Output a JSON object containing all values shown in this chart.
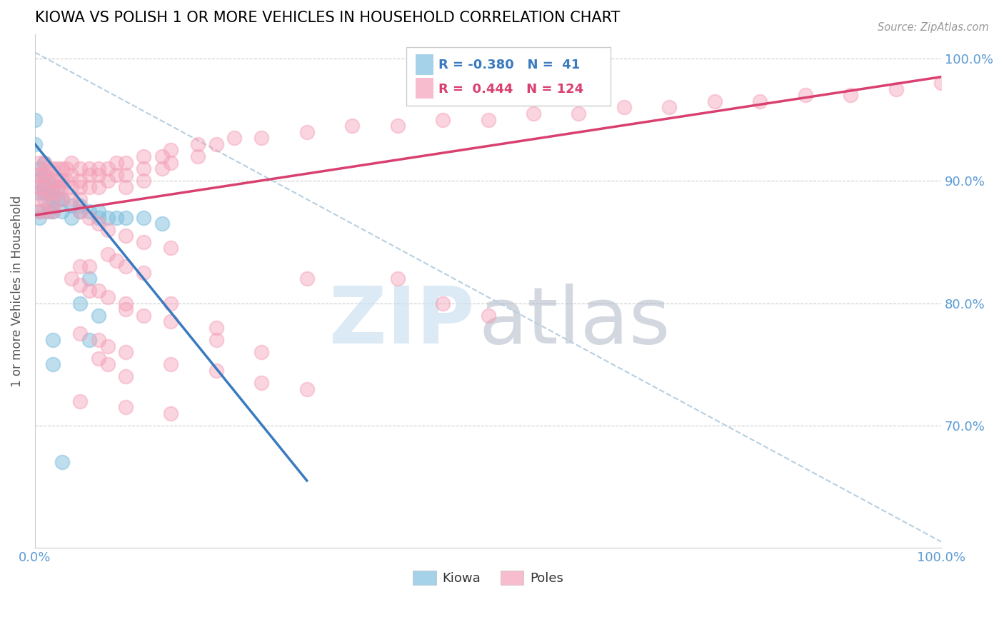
{
  "title": "KIOWA VS POLISH 1 OR MORE VEHICLES IN HOUSEHOLD CORRELATION CHART",
  "source": "Source: ZipAtlas.com",
  "ylabel": "1 or more Vehicles in Household",
  "legend_kiowa": "Kiowa",
  "legend_poles": "Poles",
  "kiowa_R": -0.38,
  "kiowa_N": 41,
  "poles_R": 0.444,
  "poles_N": 124,
  "kiowa_color": "#7fbfdf",
  "poles_color": "#f4a0b8",
  "kiowa_line_color": "#3a7abf",
  "poles_line_color": "#d94070",
  "dashed_line_color": "#b8cfe0",
  "xlim": [
    0.0,
    1.0
  ],
  "ylim": [
    0.6,
    1.02
  ],
  "yticks": [
    0.7,
    0.8,
    0.9,
    1.0
  ],
  "ytick_labels": [
    "70.0%",
    "80.0%",
    "90.0%",
    "100.0%"
  ],
  "xtick_labels_left": "0.0%",
  "xtick_labels_right": "100.0%",
  "kiowa_scatter": [
    [
      0.0,
      0.93
    ],
    [
      0.0,
      0.9
    ],
    [
      0.0,
      0.95
    ],
    [
      0.005,
      0.91
    ],
    [
      0.005,
      0.89
    ],
    [
      0.005,
      0.875
    ],
    [
      0.005,
      0.87
    ],
    [
      0.01,
      0.915
    ],
    [
      0.01,
      0.905
    ],
    [
      0.01,
      0.895
    ],
    [
      0.01,
      0.89
    ],
    [
      0.015,
      0.9
    ],
    [
      0.015,
      0.89
    ],
    [
      0.015,
      0.88
    ],
    [
      0.015,
      0.875
    ],
    [
      0.02,
      0.895
    ],
    [
      0.02,
      0.885
    ],
    [
      0.02,
      0.875
    ],
    [
      0.025,
      0.895
    ],
    [
      0.025,
      0.885
    ],
    [
      0.03,
      0.885
    ],
    [
      0.03,
      0.875
    ],
    [
      0.04,
      0.88
    ],
    [
      0.04,
      0.87
    ],
    [
      0.05,
      0.88
    ],
    [
      0.05,
      0.875
    ],
    [
      0.06,
      0.875
    ],
    [
      0.07,
      0.875
    ],
    [
      0.07,
      0.87
    ],
    [
      0.08,
      0.87
    ],
    [
      0.09,
      0.87
    ],
    [
      0.1,
      0.87
    ],
    [
      0.12,
      0.87
    ],
    [
      0.14,
      0.865
    ],
    [
      0.05,
      0.8
    ],
    [
      0.06,
      0.82
    ],
    [
      0.07,
      0.79
    ],
    [
      0.06,
      0.77
    ],
    [
      0.02,
      0.77
    ],
    [
      0.02,
      0.75
    ],
    [
      0.03,
      0.67
    ]
  ],
  "poles_scatter": [
    [
      0.0,
      0.905
    ],
    [
      0.0,
      0.895
    ],
    [
      0.005,
      0.915
    ],
    [
      0.005,
      0.905
    ],
    [
      0.005,
      0.895
    ],
    [
      0.005,
      0.885
    ],
    [
      0.005,
      0.875
    ],
    [
      0.01,
      0.915
    ],
    [
      0.01,
      0.905
    ],
    [
      0.01,
      0.895
    ],
    [
      0.01,
      0.885
    ],
    [
      0.01,
      0.875
    ],
    [
      0.015,
      0.91
    ],
    [
      0.015,
      0.9
    ],
    [
      0.015,
      0.89
    ],
    [
      0.02,
      0.91
    ],
    [
      0.02,
      0.9
    ],
    [
      0.02,
      0.89
    ],
    [
      0.02,
      0.88
    ],
    [
      0.02,
      0.875
    ],
    [
      0.025,
      0.91
    ],
    [
      0.025,
      0.9
    ],
    [
      0.025,
      0.89
    ],
    [
      0.03,
      0.91
    ],
    [
      0.03,
      0.9
    ],
    [
      0.03,
      0.895
    ],
    [
      0.03,
      0.885
    ],
    [
      0.035,
      0.91
    ],
    [
      0.035,
      0.9
    ],
    [
      0.04,
      0.915
    ],
    [
      0.04,
      0.905
    ],
    [
      0.04,
      0.895
    ],
    [
      0.04,
      0.885
    ],
    [
      0.05,
      0.91
    ],
    [
      0.05,
      0.9
    ],
    [
      0.05,
      0.895
    ],
    [
      0.05,
      0.885
    ],
    [
      0.06,
      0.91
    ],
    [
      0.06,
      0.905
    ],
    [
      0.06,
      0.895
    ],
    [
      0.07,
      0.91
    ],
    [
      0.07,
      0.905
    ],
    [
      0.07,
      0.895
    ],
    [
      0.08,
      0.91
    ],
    [
      0.08,
      0.9
    ],
    [
      0.09,
      0.915
    ],
    [
      0.09,
      0.905
    ],
    [
      0.1,
      0.915
    ],
    [
      0.1,
      0.905
    ],
    [
      0.1,
      0.895
    ],
    [
      0.12,
      0.92
    ],
    [
      0.12,
      0.91
    ],
    [
      0.12,
      0.9
    ],
    [
      0.14,
      0.92
    ],
    [
      0.14,
      0.91
    ],
    [
      0.15,
      0.925
    ],
    [
      0.15,
      0.915
    ],
    [
      0.18,
      0.93
    ],
    [
      0.18,
      0.92
    ],
    [
      0.2,
      0.93
    ],
    [
      0.22,
      0.935
    ],
    [
      0.25,
      0.935
    ],
    [
      0.3,
      0.94
    ],
    [
      0.35,
      0.945
    ],
    [
      0.4,
      0.945
    ],
    [
      0.45,
      0.95
    ],
    [
      0.5,
      0.95
    ],
    [
      0.55,
      0.955
    ],
    [
      0.6,
      0.955
    ],
    [
      0.65,
      0.96
    ],
    [
      0.7,
      0.96
    ],
    [
      0.75,
      0.965
    ],
    [
      0.8,
      0.965
    ],
    [
      0.85,
      0.97
    ],
    [
      0.9,
      0.97
    ],
    [
      0.95,
      0.975
    ],
    [
      1.0,
      0.98
    ],
    [
      0.05,
      0.875
    ],
    [
      0.06,
      0.87
    ],
    [
      0.07,
      0.865
    ],
    [
      0.08,
      0.86
    ],
    [
      0.1,
      0.855
    ],
    [
      0.12,
      0.85
    ],
    [
      0.15,
      0.845
    ],
    [
      0.08,
      0.84
    ],
    [
      0.09,
      0.835
    ],
    [
      0.05,
      0.83
    ],
    [
      0.06,
      0.83
    ],
    [
      0.1,
      0.83
    ],
    [
      0.12,
      0.825
    ],
    [
      0.04,
      0.82
    ],
    [
      0.05,
      0.815
    ],
    [
      0.06,
      0.81
    ],
    [
      0.07,
      0.81
    ],
    [
      0.08,
      0.805
    ],
    [
      0.1,
      0.8
    ],
    [
      0.15,
      0.8
    ],
    [
      0.1,
      0.795
    ],
    [
      0.12,
      0.79
    ],
    [
      0.15,
      0.785
    ],
    [
      0.2,
      0.78
    ],
    [
      0.05,
      0.775
    ],
    [
      0.07,
      0.77
    ],
    [
      0.2,
      0.77
    ],
    [
      0.08,
      0.765
    ],
    [
      0.1,
      0.76
    ],
    [
      0.25,
      0.76
    ],
    [
      0.07,
      0.755
    ],
    [
      0.08,
      0.75
    ],
    [
      0.15,
      0.75
    ],
    [
      0.2,
      0.745
    ],
    [
      0.1,
      0.74
    ],
    [
      0.25,
      0.735
    ],
    [
      0.3,
      0.73
    ],
    [
      0.05,
      0.72
    ],
    [
      0.1,
      0.715
    ],
    [
      0.15,
      0.71
    ],
    [
      0.3,
      0.82
    ],
    [
      0.4,
      0.82
    ],
    [
      0.45,
      0.8
    ],
    [
      0.5,
      0.79
    ]
  ],
  "kiowa_line": [
    [
      0.0,
      0.93
    ],
    [
      0.3,
      0.655
    ]
  ],
  "poles_line": [
    [
      0.0,
      0.872
    ],
    [
      1.0,
      0.985
    ]
  ],
  "dashed_line": [
    [
      0.0,
      1.005
    ],
    [
      1.0,
      0.605
    ]
  ]
}
